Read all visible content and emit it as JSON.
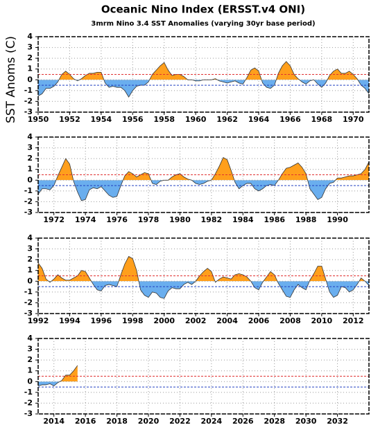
{
  "chart_data": [
    {
      "type": "area",
      "title": "Oceanic Nino Index (ERSST.v4 ONI)",
      "subtitle": "3mrm Nino 3.4 SST Anomalies (varying 30yr base period)",
      "y_label": "SST Anoms (C)",
      "x": [
        1950,
        1950.25,
        1950.5,
        1950.75,
        1951,
        1951.25,
        1951.5,
        1951.75,
        1952,
        1952.25,
        1952.5,
        1952.75,
        1953,
        1953.25,
        1953.5,
        1953.75,
        1954,
        1954.25,
        1954.5,
        1954.75,
        1955,
        1955.25,
        1955.5,
        1955.75,
        1956,
        1956.25,
        1956.5,
        1956.75,
        1957,
        1957.25,
        1957.5,
        1957.75,
        1958,
        1958.25,
        1958.5,
        1958.75,
        1959,
        1959.25,
        1959.5,
        1959.75,
        1960,
        1960.25,
        1960.5,
        1960.75,
        1961,
        1961.25,
        1961.5,
        1961.75,
        1962,
        1962.25,
        1962.5,
        1962.75,
        1963,
        1963.25,
        1963.5,
        1963.75,
        1964,
        1964.25,
        1964.5,
        1964.75,
        1965,
        1965.25,
        1965.5,
        1965.75,
        1966,
        1966.25,
        1966.5,
        1966.75,
        1967,
        1967.25,
        1967.5,
        1967.75,
        1968,
        1968.25,
        1968.5,
        1968.75,
        1969,
        1969.25,
        1969.5,
        1969.75,
        1970,
        1970.25,
        1970.5,
        1970.75,
        1971
      ],
      "values": [
        -1.5,
        -1.3,
        -0.8,
        -0.8,
        -0.6,
        -0.2,
        0.5,
        0.8,
        0.5,
        0.1,
        -0.1,
        0.1,
        0.4,
        0.6,
        0.6,
        0.7,
        0.7,
        -0.3,
        -0.7,
        -0.6,
        -0.7,
        -0.7,
        -1.0,
        -1.6,
        -1.0,
        -0.6,
        -0.5,
        -0.5,
        -0.2,
        0.5,
        0.9,
        1.3,
        1.6,
        0.9,
        0.4,
        0.5,
        0.5,
        0.3,
        0.0,
        0.0,
        -0.1,
        -0.1,
        0.0,
        0.0,
        0.0,
        0.1,
        -0.1,
        -0.2,
        -0.3,
        -0.2,
        -0.1,
        -0.3,
        -0.4,
        0.2,
        0.9,
        1.1,
        0.8,
        -0.3,
        -0.7,
        -0.8,
        -0.5,
        0.6,
        1.3,
        1.7,
        1.3,
        0.5,
        0.1,
        -0.2,
        -0.4,
        -0.1,
        0.0,
        -0.4,
        -0.7,
        -0.3,
        0.4,
        0.8,
        1.0,
        0.6,
        0.6,
        0.8,
        0.5,
        0.1,
        -0.5,
        -0.8,
        -1.3
      ],
      "xlim": [
        1950,
        1971
      ],
      "xticks": [
        1950,
        1952,
        1954,
        1956,
        1958,
        1960,
        1962,
        1964,
        1966,
        1968,
        1970
      ],
      "ylim": [
        -3,
        4
      ],
      "yticks": [
        -3,
        -2,
        -1,
        0,
        1,
        2,
        3,
        4
      ],
      "grid": true,
      "positive_color": "#ff9f1c",
      "negative_color": "#6aaeee",
      "line_color": "#333333",
      "thresholds": [
        {
          "value": 0.5,
          "color": "#e03030"
        },
        {
          "value": -0.5,
          "color": "#2040c0"
        }
      ]
    },
    {
      "type": "area",
      "x": [
        1971,
        1971.25,
        1971.5,
        1971.75,
        1972,
        1972.25,
        1972.5,
        1972.75,
        1973,
        1973.25,
        1973.5,
        1973.75,
        1974,
        1974.25,
        1974.5,
        1974.75,
        1975,
        1975.25,
        1975.5,
        1975.75,
        1976,
        1976.25,
        1976.5,
        1976.75,
        1977,
        1977.25,
        1977.5,
        1977.75,
        1978,
        1978.25,
        1978.5,
        1978.75,
        1979,
        1979.25,
        1979.5,
        1979.75,
        1980,
        1980.25,
        1980.5,
        1980.75,
        1981,
        1981.25,
        1981.5,
        1981.75,
        1982,
        1982.25,
        1982.5,
        1982.75,
        1983,
        1983.25,
        1983.5,
        1983.75,
        1984,
        1984.25,
        1984.5,
        1984.75,
        1985,
        1985.25,
        1985.5,
        1985.75,
        1986,
        1986.25,
        1986.5,
        1986.75,
        1987,
        1987.25,
        1987.5,
        1987.75,
        1988,
        1988.25,
        1988.5,
        1988.75,
        1989,
        1989.25,
        1989.5,
        1989.75,
        1990,
        1990.25,
        1990.5,
        1990.75,
        1991,
        1991.25,
        1991.5,
        1991.75,
        1992
      ],
      "values": [
        -1.3,
        -0.8,
        -0.8,
        -0.9,
        -0.5,
        0.4,
        1.2,
        2.0,
        1.5,
        -0.1,
        -1.1,
        -1.9,
        -1.8,
        -0.9,
        -0.7,
        -0.8,
        -0.6,
        -1.0,
        -1.4,
        -1.6,
        -1.5,
        -0.5,
        0.4,
        0.8,
        0.6,
        0.3,
        0.5,
        0.7,
        0.6,
        -0.3,
        -0.4,
        -0.1,
        0.0,
        0.0,
        0.3,
        0.5,
        0.6,
        0.3,
        0.1,
        0.0,
        -0.3,
        -0.4,
        -0.3,
        -0.1,
        0.0,
        0.6,
        1.3,
        2.1,
        1.9,
        0.9,
        -0.2,
        -0.8,
        -0.5,
        -0.3,
        -0.3,
        -0.8,
        -1.0,
        -0.8,
        -0.5,
        -0.4,
        -0.5,
        0.0,
        0.6,
        1.1,
        1.2,
        1.4,
        1.6,
        1.2,
        0.6,
        -0.8,
        -1.3,
        -1.8,
        -1.6,
        -0.8,
        -0.3,
        -0.2,
        0.2,
        0.2,
        0.3,
        0.4,
        0.4,
        0.5,
        0.6,
        1.0,
        1.7
      ],
      "xlim": [
        1971,
        1992
      ],
      "xticks": [
        1972,
        1974,
        1976,
        1978,
        1980,
        1982,
        1984,
        1986,
        1988,
        1990
      ],
      "ylim": [
        -3,
        4
      ],
      "yticks": [
        -3,
        -2,
        -1,
        0,
        1,
        2,
        3,
        4
      ],
      "grid": true,
      "positive_color": "#ff9f1c",
      "negative_color": "#6aaeee",
      "line_color": "#333333",
      "thresholds": [
        {
          "value": 0.5,
          "color": "#e03030"
        },
        {
          "value": -0.5,
          "color": "#2040c0"
        }
      ]
    },
    {
      "type": "area",
      "x": [
        1992,
        1992.25,
        1992.5,
        1992.75,
        1993,
        1993.25,
        1993.5,
        1993.75,
        1994,
        1994.25,
        1994.5,
        1994.75,
        1995,
        1995.25,
        1995.5,
        1995.75,
        1996,
        1996.25,
        1996.5,
        1996.75,
        1997,
        1997.25,
        1997.5,
        1997.75,
        1998,
        1998.25,
        1998.5,
        1998.75,
        1999,
        1999.25,
        1999.5,
        1999.75,
        2000,
        2000.25,
        2000.5,
        2000.75,
        2001,
        2001.25,
        2001.5,
        2001.75,
        2002,
        2002.25,
        2002.5,
        2002.75,
        2003,
        2003.25,
        2003.5,
        2003.75,
        2004,
        2004.25,
        2004.5,
        2004.75,
        2005,
        2005.25,
        2005.5,
        2005.75,
        2006,
        2006.25,
        2006.5,
        2006.75,
        2007,
        2007.25,
        2007.5,
        2007.75,
        2008,
        2008.25,
        2008.5,
        2008.75,
        2009,
        2009.25,
        2009.5,
        2009.75,
        2010,
        2010.25,
        2010.5,
        2010.75,
        2011,
        2011.25,
        2011.5,
        2011.75,
        2012,
        2012.25,
        2012.5,
        2012.75,
        2013
      ],
      "values": [
        1.7,
        1.2,
        0.2,
        -0.1,
        0.2,
        0.6,
        0.3,
        0.1,
        0.1,
        0.3,
        0.5,
        1.0,
        0.9,
        0.3,
        -0.3,
        -0.8,
        -0.9,
        -0.4,
        -0.3,
        -0.4,
        -0.5,
        0.6,
        1.6,
        2.3,
        2.1,
        1.0,
        -0.8,
        -1.3,
        -1.5,
        -1.0,
        -1.1,
        -1.5,
        -1.6,
        -0.9,
        -0.6,
        -0.7,
        -0.7,
        -0.3,
        -0.1,
        -0.3,
        0.0,
        0.5,
        0.9,
        1.2,
        0.9,
        -0.1,
        0.2,
        0.4,
        0.3,
        0.2,
        0.6,
        0.7,
        0.6,
        0.4,
        0.0,
        -0.6,
        -0.8,
        -0.1,
        0.4,
        0.9,
        0.6,
        -0.2,
        -0.8,
        -1.4,
        -1.5,
        -0.8,
        -0.3,
        -0.6,
        -0.8,
        0.1,
        0.7,
        1.4,
        1.4,
        0.2,
        -1.0,
        -1.5,
        -1.3,
        -0.5,
        -0.6,
        -1.0,
        -0.8,
        -0.3,
        0.3,
        0.0,
        -0.4
      ],
      "xlim": [
        1992,
        2013
      ],
      "xticks": [
        1992,
        1994,
        1996,
        1998,
        2000,
        2002,
        2004,
        2006,
        2008,
        2010,
        2012
      ],
      "ylim": [
        -3,
        4
      ],
      "yticks": [
        -3,
        -2,
        -1,
        0,
        1,
        2,
        3,
        4
      ],
      "grid": true,
      "positive_color": "#ff9f1c",
      "negative_color": "#6aaeee",
      "line_color": "#333333",
      "thresholds": [
        {
          "value": 0.5,
          "color": "#e03030"
        },
        {
          "value": -0.5,
          "color": "#2040c0"
        }
      ]
    },
    {
      "type": "area",
      "x": [
        2013,
        2013.25,
        2013.5,
        2013.75,
        2014,
        2014.25,
        2014.5,
        2014.75,
        2015,
        2015.25,
        2015.5
      ],
      "values": [
        -0.4,
        -0.3,
        -0.3,
        -0.2,
        -0.4,
        -0.1,
        0.1,
        0.6,
        0.6,
        1.0,
        1.5
      ],
      "xlim": [
        2013,
        2034
      ],
      "xticks": [
        2014,
        2016,
        2018,
        2020,
        2022,
        2024,
        2026,
        2028,
        2030,
        2032
      ],
      "ylim": [
        -3,
        4
      ],
      "yticks": [
        -3,
        -2,
        -1,
        0,
        1,
        2,
        3,
        4
      ],
      "grid": true,
      "positive_color": "#ff9f1c",
      "negative_color": "#6aaeee",
      "line_color": "#333333",
      "thresholds": [
        {
          "value": 0.5,
          "color": "#e03030"
        },
        {
          "value": -0.5,
          "color": "#2040c0"
        }
      ]
    }
  ]
}
